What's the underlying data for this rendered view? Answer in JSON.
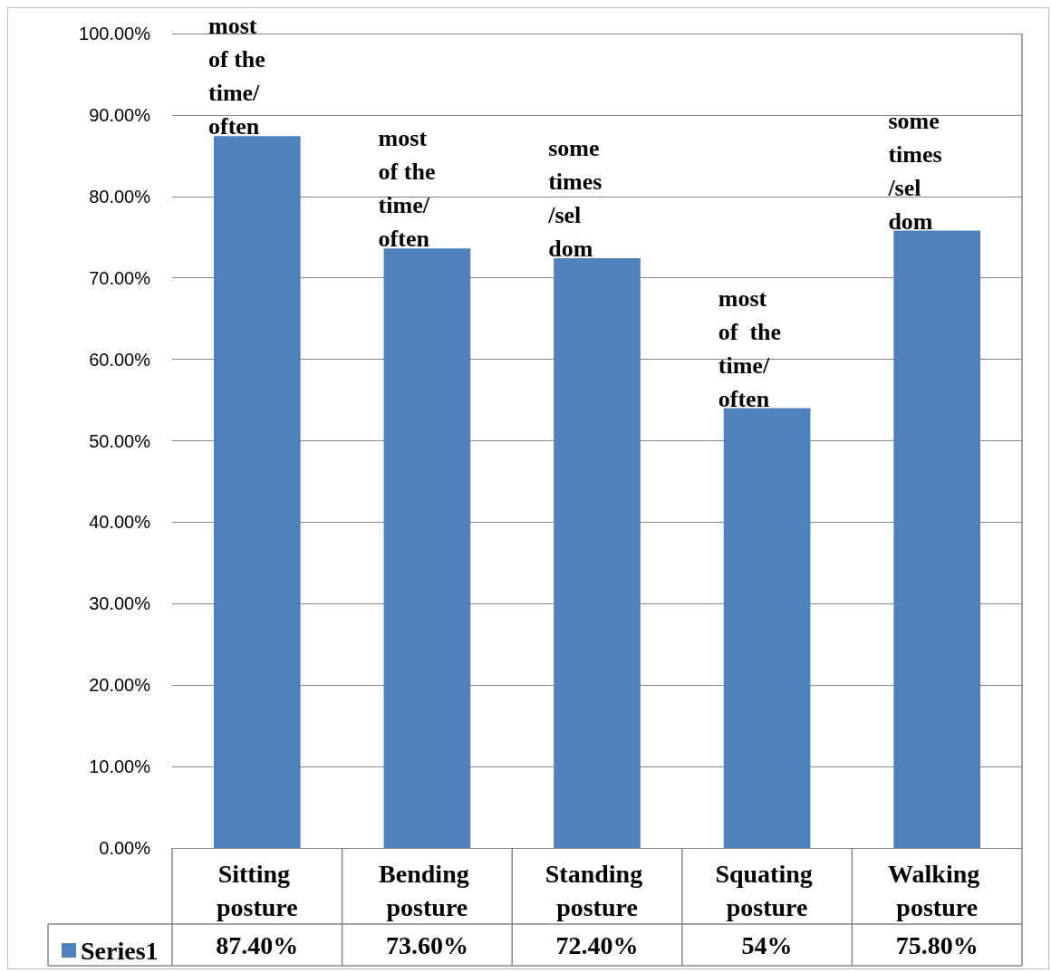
{
  "chart_data": {
    "type": "bar",
    "categories": [
      "Sitting posture",
      "Bending posture",
      "Standing posture",
      "Squating posture",
      "Walking posture"
    ],
    "series": [
      {
        "name": "Series1",
        "color": "#4f81bd",
        "values": [
          87.4,
          73.6,
          72.4,
          54,
          75.8
        ]
      }
    ],
    "value_labels": [
      "87.40%",
      "73.60%",
      "72.40%",
      "54%",
      "75.80%"
    ],
    "ylim": [
      0,
      100
    ],
    "yticks": [
      {
        "value": 0,
        "label": "0.00%"
      },
      {
        "value": 10,
        "label": "10.00%"
      },
      {
        "value": 20,
        "label": "20.00%"
      },
      {
        "value": 30,
        "label": "30.00%"
      },
      {
        "value": 40,
        "label": "40.00%"
      },
      {
        "value": 50,
        "label": "50.00%"
      },
      {
        "value": 60,
        "label": "60.00%"
      },
      {
        "value": 70,
        "label": "70.00%"
      },
      {
        "value": 80,
        "label": "80.00%"
      },
      {
        "value": 90,
        "label": "90.00%"
      },
      {
        "value": 100,
        "label": "100.00%"
      }
    ],
    "grid": "y",
    "legend": "bottom",
    "annotations": [
      {
        "text": "most\nof the\ntime/\noften",
        "x": "Sitting posture",
        "y": 87.4
      },
      {
        "text": "most\nof the\ntime/\noften",
        "x": "Bending posture",
        "y": 73.6
      },
      {
        "text": "some\ntimes\n/sel\ndom",
        "x": "Standing posture",
        "y": 72.4
      },
      {
        "text": "most\nof  the\ntime/\noften",
        "x": "Squating posture",
        "y": 54
      },
      {
        "text": "some\ntimes\n/sel\ndom",
        "x": "Walking posture",
        "y": 75.8
      }
    ]
  }
}
